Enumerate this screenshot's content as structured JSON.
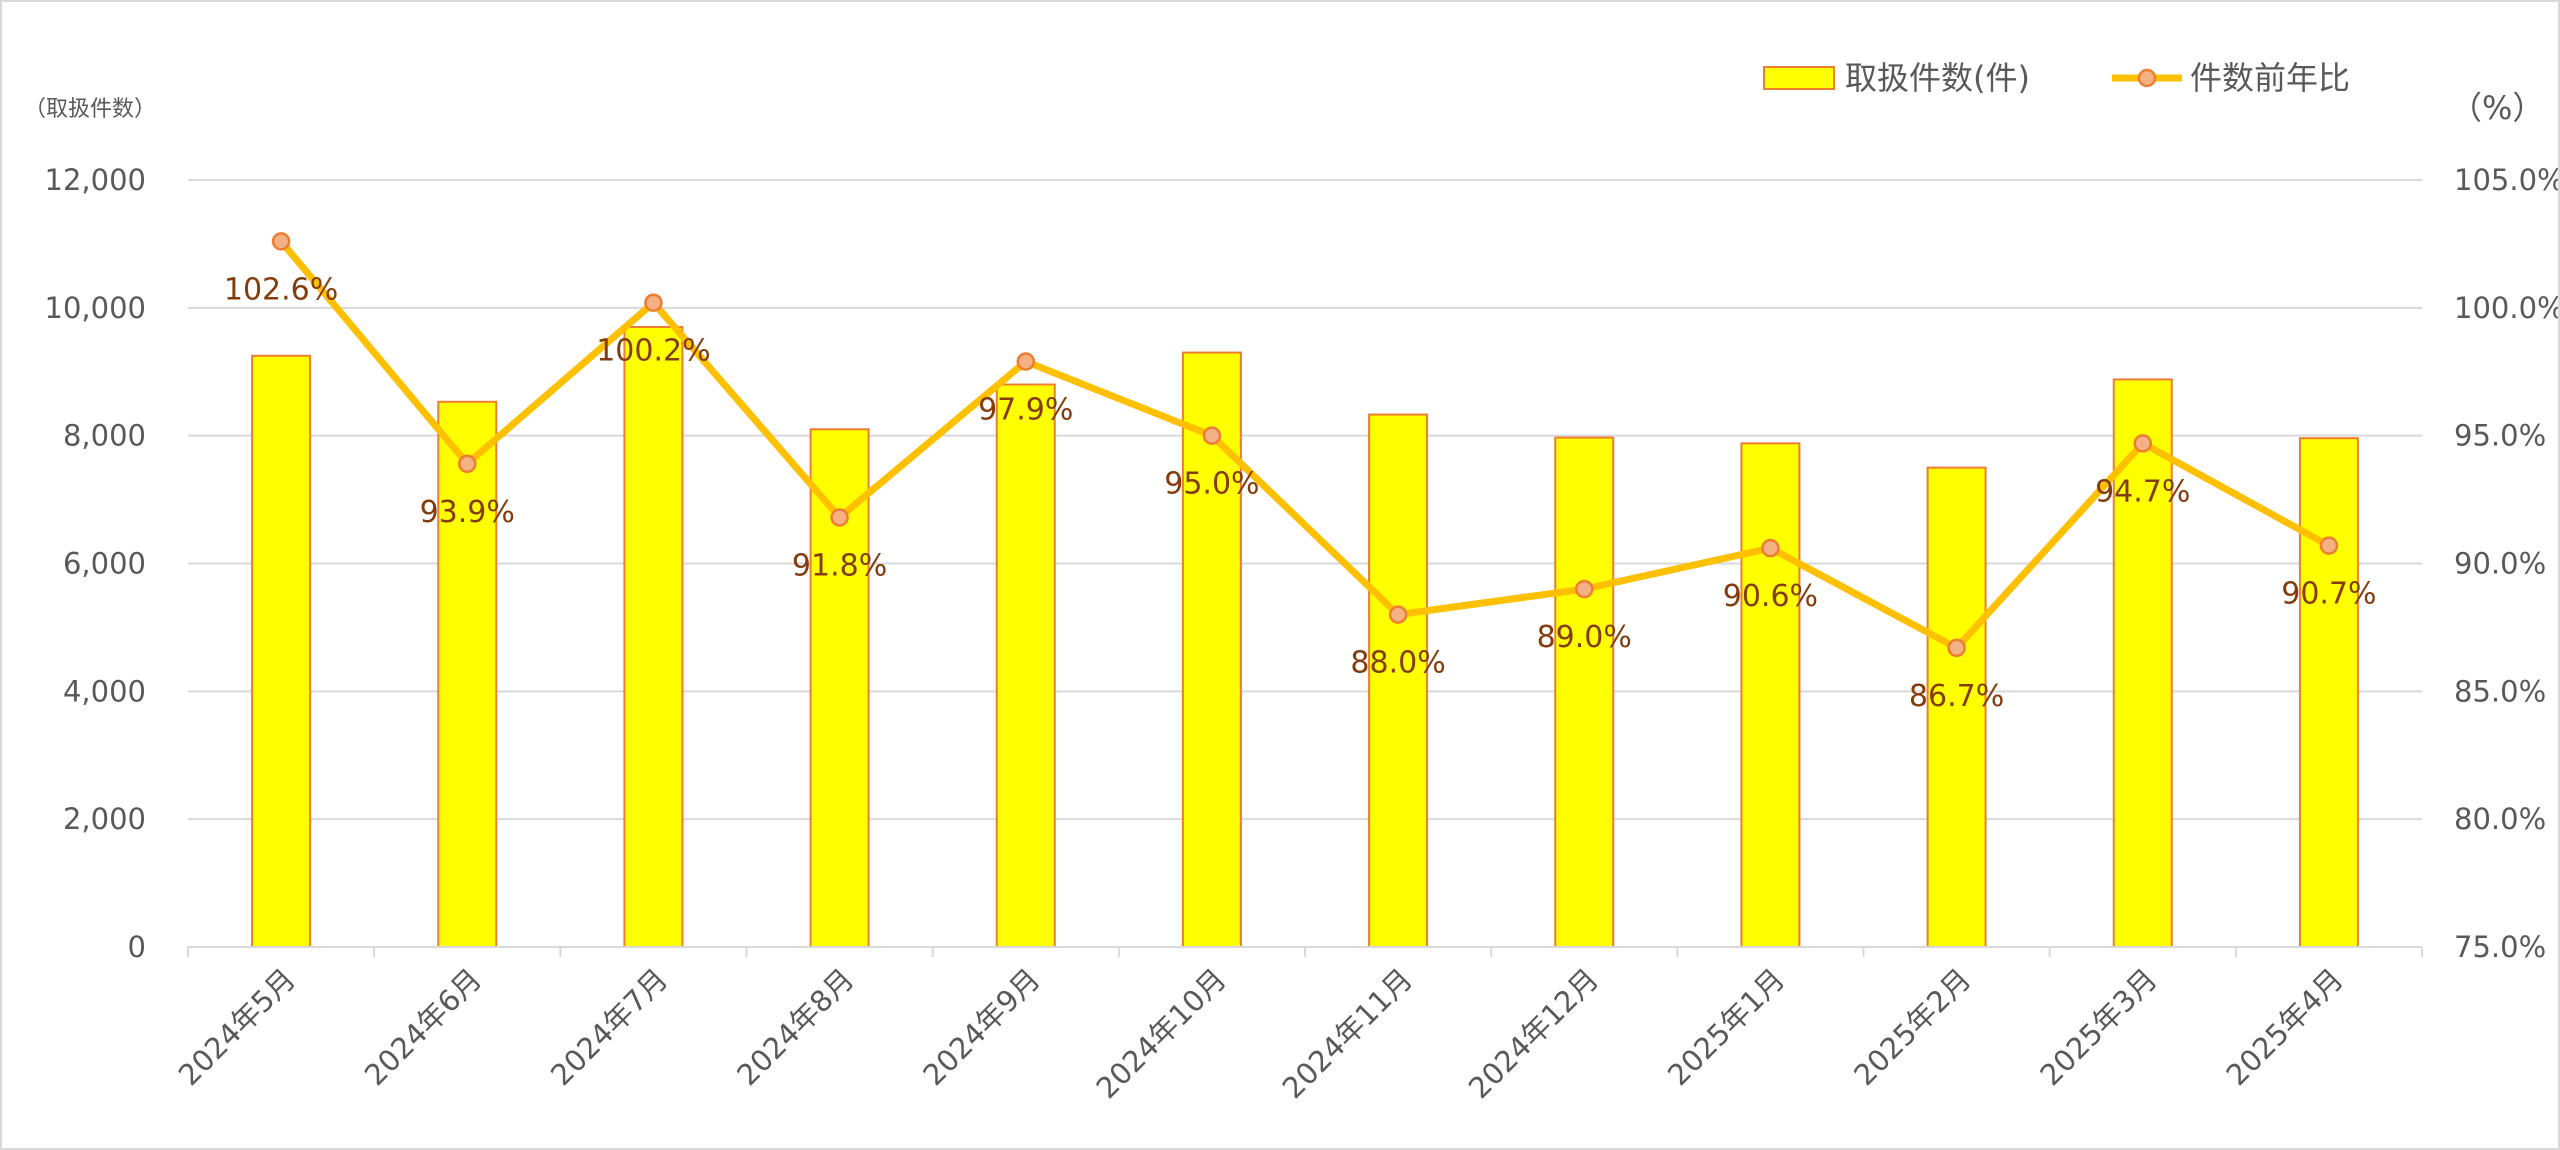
{
  "chart_data": {
    "type": "bar",
    "categories": [
      "2024年5月",
      "2024年6月",
      "2024年7月",
      "2024年8月",
      "2024年9月",
      "2024年10月",
      "2024年11月",
      "2024年12月",
      "2025年1月",
      "2025年2月",
      "2025年3月",
      "2025年4月"
    ],
    "series": [
      {
        "name": "取扱件数(件)",
        "type": "bar",
        "axis": "left",
        "color": "#ffff00",
        "border_color": "#ed7d31",
        "values": [
          9250,
          8530,
          9700,
          8100,
          8800,
          9300,
          8330,
          7970,
          7880,
          7500,
          8880,
          7960
        ]
      },
      {
        "name": "件数前年比",
        "type": "line",
        "axis": "right",
        "color": "#ffc000",
        "marker_color": "#f4b183",
        "marker_border": "#ed7d31",
        "values": [
          102.6,
          93.9,
          100.2,
          91.8,
          97.9,
          95.0,
          88.0,
          89.0,
          90.6,
          86.7,
          94.7,
          90.7
        ],
        "labels": [
          "102.6%",
          "93.9%",
          "100.2%",
          "91.8%",
          "97.9%",
          "95.0%",
          "88.0%",
          "89.0%",
          "90.6%",
          "86.7%",
          "94.7%",
          "90.7%"
        ]
      }
    ],
    "y_left": {
      "label": "（取扱件数）",
      "ylim": [
        0,
        12000
      ],
      "ticks": [
        "0",
        "2,000",
        "4,000",
        "6,000",
        "8,000",
        "10,000",
        "12,000"
      ]
    },
    "y_right": {
      "label": "（%）",
      "ylim": [
        75,
        105
      ],
      "ticks": [
        "75.0%",
        "80.0%",
        "85.0%",
        "90.0%",
        "95.0%",
        "100.0%",
        "105.0%"
      ]
    },
    "grid": true,
    "legend_position": "top-right",
    "label_color": "#843c0c",
    "grid_color": "#d9d9d9",
    "text_color": "#595959"
  }
}
